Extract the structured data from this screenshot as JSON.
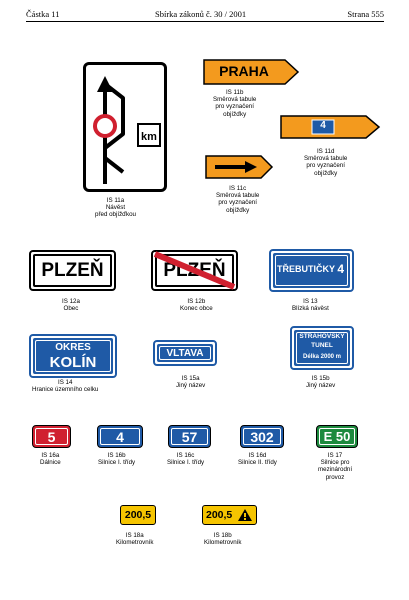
{
  "header": {
    "left": "Částka 11",
    "center": "Sbírka zákonů č. 30 / 2001",
    "center_bold": "30",
    "right": "Strana 555"
  },
  "signs": {
    "is11a": {
      "km": "km",
      "caption": [
        "IS 11a",
        "Návěst",
        "před objížďkou"
      ]
    },
    "is11b": {
      "text": "PRAHA",
      "caption": [
        "IS 11b",
        "Směrová tabule",
        "pro vyznačení",
        "objížďky"
      ]
    },
    "is11d": {
      "text": "4",
      "caption": [
        "IS 11d",
        "Směrová tabule",
        "pro vyznačení",
        "objížďky"
      ]
    },
    "is11c": {
      "caption": [
        "IS 11c",
        "Směrová tabule",
        "pro vyznačení",
        "objížďky"
      ]
    },
    "is12a": {
      "text": "PLZEŇ",
      "caption": [
        "IS 12a",
        "Obec"
      ]
    },
    "is12b": {
      "text": "PLZEŇ",
      "caption": [
        "IS 12b",
        "Konec obce"
      ]
    },
    "is13": {
      "text": "TŘEBUTIČKY",
      "number": "4",
      "caption": [
        "IS 13",
        "Blízká návěst"
      ]
    },
    "is14": {
      "line1": "OKRES",
      "line2": "KOLÍN",
      "caption": [
        "IS 14",
        "Hranice územního celku"
      ]
    },
    "is15a": {
      "text": "VLTAVA",
      "caption": [
        "IS 15a",
        "Jiný název"
      ]
    },
    "is15b": {
      "line1": "STRAHOVSKÝ",
      "line2": "TUNEL",
      "line3": "Délka 2000 m",
      "caption": [
        "IS 15b",
        "Jiný název"
      ]
    },
    "is16a": {
      "text": "5",
      "caption": [
        "IS 16a",
        "Dálnice"
      ]
    },
    "is16b": {
      "text": "4",
      "caption": [
        "IS 16b",
        "Silnice I. třídy"
      ]
    },
    "is16c": {
      "text": "57",
      "caption": [
        "IS 16c",
        "Silnice I. třídy"
      ]
    },
    "is16d": {
      "text": "302",
      "caption": [
        "IS 16d",
        "Silnice II. třídy"
      ]
    },
    "is17": {
      "text": "E 50",
      "caption": [
        "IS 17",
        "Silnice pro",
        "mezinárodní",
        "provoz"
      ]
    },
    "is18a": {
      "text": "200,5",
      "caption": [
        "IS 18a",
        "Kilometrovník"
      ]
    },
    "is18b": {
      "text": "200,5",
      "caption": [
        "IS 18b",
        "Kilometrovník"
      ]
    }
  },
  "colors": {
    "orange": "#f39a1e",
    "blue": "#1f5aa6",
    "red": "#d0202f",
    "green": "#1d8a3e",
    "yellow": "#f5c400"
  }
}
